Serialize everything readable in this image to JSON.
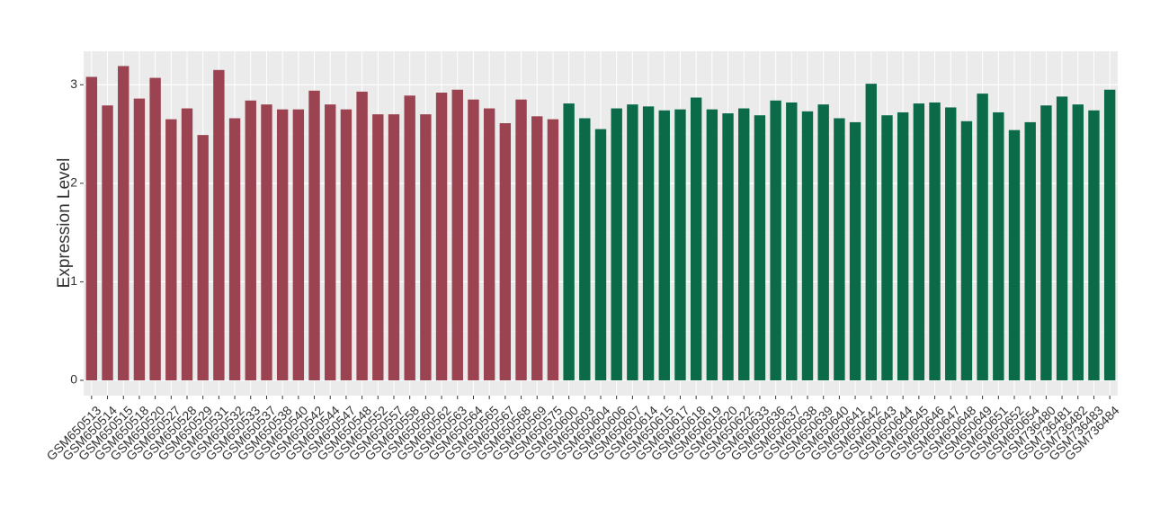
{
  "chart_data": {
    "type": "bar",
    "y_label": "Expression Level",
    "categories": [
      "GSM650513",
      "GSM650514",
      "GSM650515",
      "GSM650518",
      "GSM650520",
      "GSM650527",
      "GSM650528",
      "GSM650529",
      "GSM650531",
      "GSM650532",
      "GSM650533",
      "GSM650537",
      "GSM650538",
      "GSM650540",
      "GSM650542",
      "GSM650544",
      "GSM650547",
      "GSM650548",
      "GSM650552",
      "GSM650557",
      "GSM650558",
      "GSM650560",
      "GSM650562",
      "GSM650563",
      "GSM650564",
      "GSM650565",
      "GSM650567",
      "GSM650568",
      "GSM650569",
      "GSM650575",
      "GSM650600",
      "GSM650603",
      "GSM650604",
      "GSM650606",
      "GSM650607",
      "GSM650614",
      "GSM650615",
      "GSM650617",
      "GSM650618",
      "GSM650619",
      "GSM650620",
      "GSM650622",
      "GSM650633",
      "GSM650636",
      "GSM650637",
      "GSM650638",
      "GSM650639",
      "GSM650640",
      "GSM650641",
      "GSM650642",
      "GSM650643",
      "GSM650644",
      "GSM650645",
      "GSM650646",
      "GSM650647",
      "GSM650648",
      "GSM650649",
      "GSM650651",
      "GSM650652",
      "GSM650654",
      "GSM736480",
      "GSM736481",
      "GSM736482",
      "GSM736483",
      "GSM736484"
    ],
    "values": [
      3.08,
      2.79,
      3.19,
      2.86,
      3.07,
      2.65,
      2.76,
      2.49,
      3.15,
      2.66,
      2.84,
      2.8,
      2.75,
      2.75,
      2.94,
      2.8,
      2.75,
      2.93,
      2.7,
      2.7,
      2.89,
      2.7,
      2.92,
      2.95,
      2.85,
      2.76,
      2.61,
      2.85,
      2.68,
      2.65,
      2.81,
      2.66,
      2.55,
      2.76,
      2.8,
      2.78,
      2.74,
      2.75,
      2.87,
      2.75,
      2.71,
      2.76,
      2.69,
      2.84,
      2.82,
      2.73,
      2.8,
      2.66,
      2.62,
      3.01,
      2.69,
      2.72,
      2.81,
      2.82,
      2.77,
      2.63,
      2.91,
      2.72,
      2.54,
      2.62,
      2.79,
      2.88,
      2.8,
      2.74,
      2.95
    ],
    "colors": [
      "#9b4350",
      "#9b4350",
      "#9b4350",
      "#9b4350",
      "#9b4350",
      "#9b4350",
      "#9b4350",
      "#9b4350",
      "#9b4350",
      "#9b4350",
      "#9b4350",
      "#9b4350",
      "#9b4350",
      "#9b4350",
      "#9b4350",
      "#9b4350",
      "#9b4350",
      "#9b4350",
      "#9b4350",
      "#9b4350",
      "#9b4350",
      "#9b4350",
      "#9b4350",
      "#9b4350",
      "#9b4350",
      "#9b4350",
      "#9b4350",
      "#9b4350",
      "#9b4350",
      "#9b4350",
      "#0b6a48",
      "#0b6a48",
      "#0b6a48",
      "#0b6a48",
      "#0b6a48",
      "#0b6a48",
      "#0b6a48",
      "#0b6a48",
      "#0b6a48",
      "#0b6a48",
      "#0b6a48",
      "#0b6a48",
      "#0b6a48",
      "#0b6a48",
      "#0b6a48",
      "#0b6a48",
      "#0b6a48",
      "#0b6a48",
      "#0b6a48",
      "#0b6a48",
      "#0b6a48",
      "#0b6a48",
      "#0b6a48",
      "#0b6a48",
      "#0b6a48",
      "#0b6a48",
      "#0b6a48",
      "#0b6a48",
      "#0b6a48",
      "#0b6a48",
      "#0b6a48",
      "#0b6a48",
      "#0b6a48",
      "#0b6a48",
      "#0b6a48"
    ],
    "ylim": [
      -0.155,
      3.34
    ],
    "yticks": [
      0,
      1,
      2,
      3
    ],
    "grid": true
  }
}
